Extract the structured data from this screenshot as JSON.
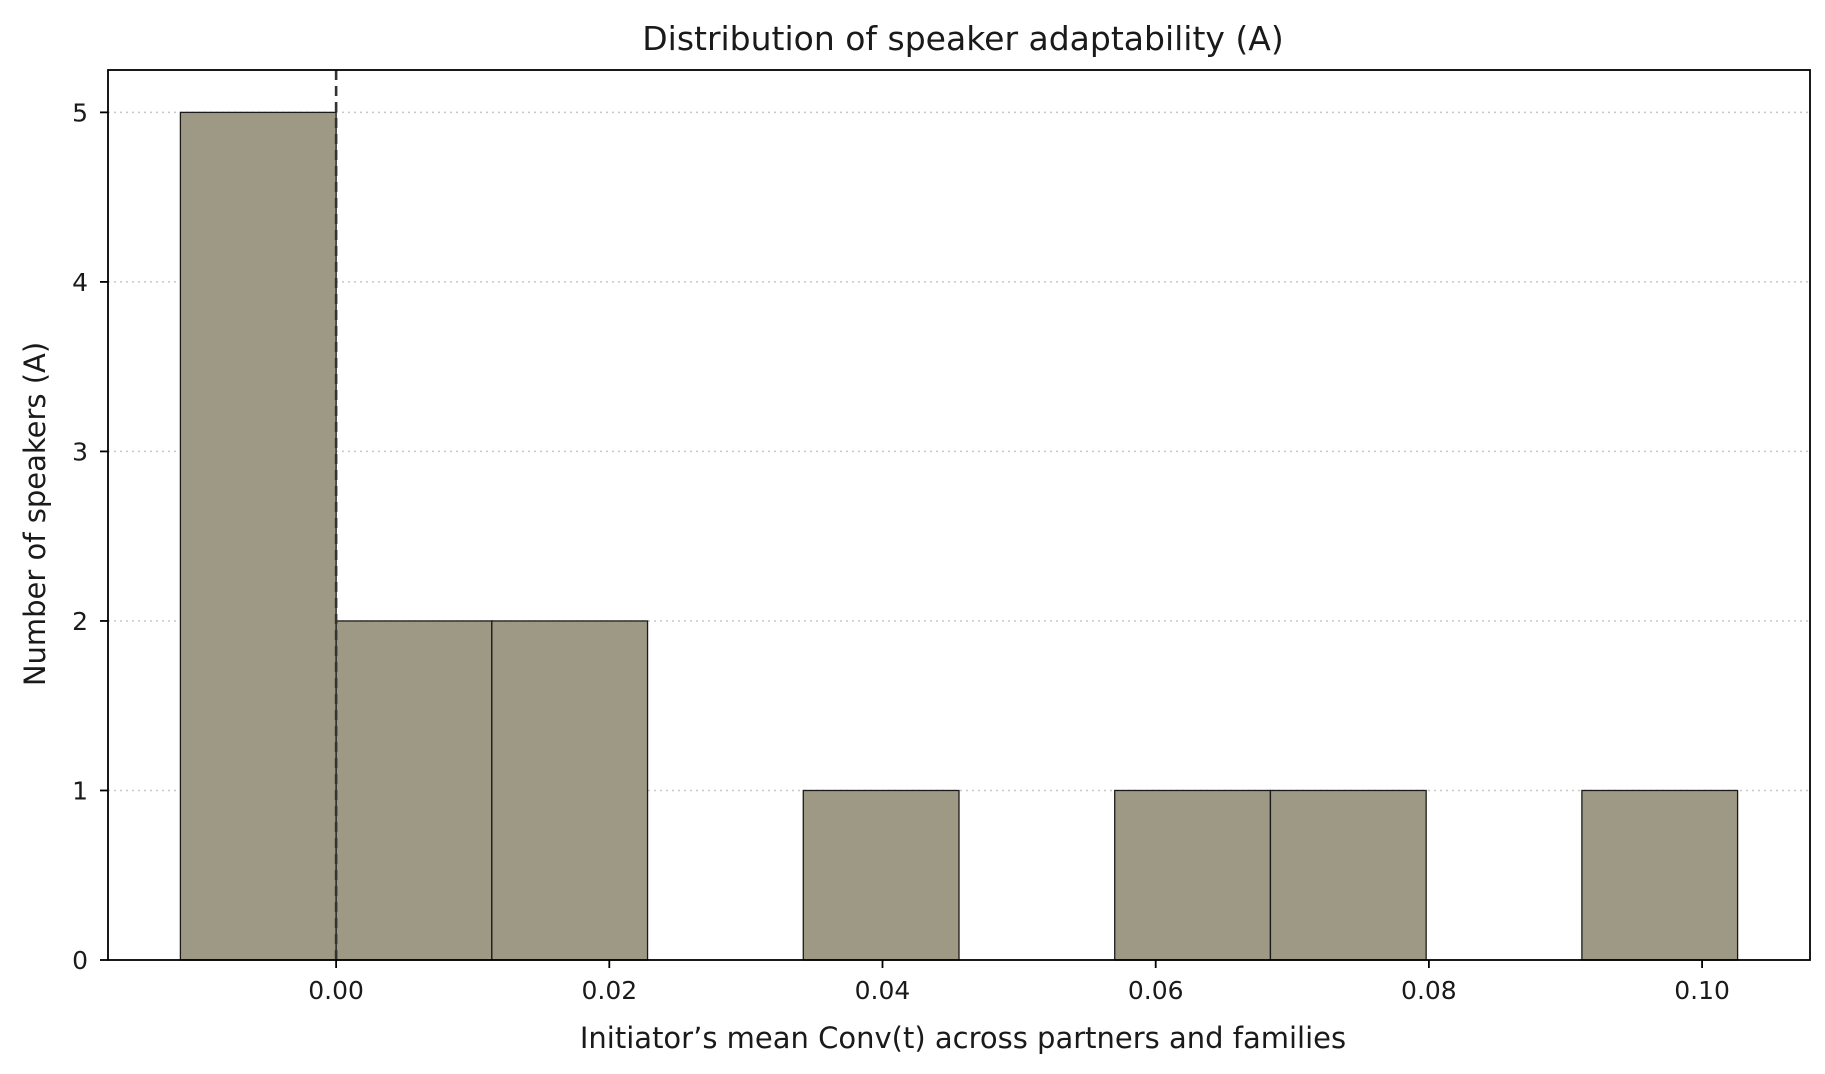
{
  "chart_data": {
    "type": "bar",
    "title": "Distribution of speaker adaptability (A)",
    "xlabel": "Initiator’s mean Conv(t) across partners and families",
    "ylabel": "Number of speakers (A)",
    "bins": [
      {
        "x0": -0.0114,
        "x1": 0.0,
        "count": 5
      },
      {
        "x0": 0.0,
        "x1": 0.0114,
        "count": 2
      },
      {
        "x0": 0.0114,
        "x1": 0.0228,
        "count": 2
      },
      {
        "x0": 0.0228,
        "x1": 0.0342,
        "count": 0
      },
      {
        "x0": 0.0342,
        "x1": 0.0456,
        "count": 1
      },
      {
        "x0": 0.0456,
        "x1": 0.057,
        "count": 0
      },
      {
        "x0": 0.057,
        "x1": 0.0684,
        "count": 1
      },
      {
        "x0": 0.0684,
        "x1": 0.0798,
        "count": 1
      },
      {
        "x0": 0.0798,
        "x1": 0.0912,
        "count": 0
      },
      {
        "x0": 0.0912,
        "x1": 0.1026,
        "count": 1
      }
    ],
    "reference_line": {
      "x": 0.0,
      "style": "dashed"
    },
    "xlim": [
      -0.0167,
      0.1079
    ],
    "ylim": [
      0,
      5.25
    ],
    "xticks": [
      0.0,
      0.02,
      0.04,
      0.06,
      0.08,
      0.1
    ],
    "xtick_labels": [
      "0.00",
      "0.02",
      "0.04",
      "0.06",
      "0.08",
      "0.10"
    ],
    "yticks": [
      0,
      1,
      2,
      3,
      4,
      5
    ],
    "ytick_labels": [
      "0",
      "1",
      "2",
      "3",
      "4",
      "5"
    ],
    "grid": "horizontal-dotted",
    "colors": {
      "bar": "#9e9984",
      "edge": "#1a1a1a",
      "reference": "#333333"
    }
  }
}
